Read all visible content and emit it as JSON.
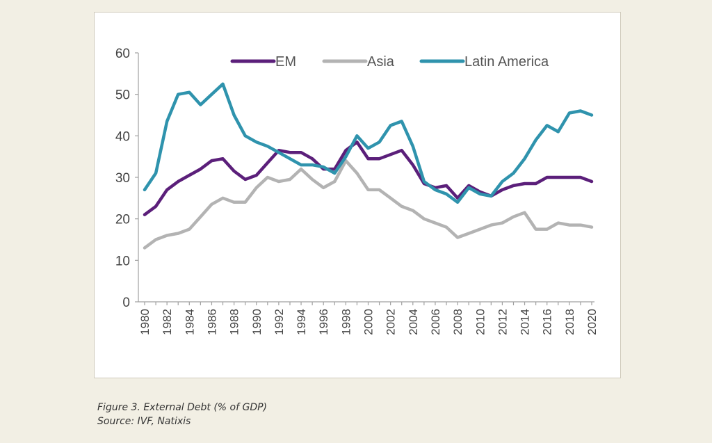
{
  "caption": {
    "figure": "Figure 3. External Debt (% of GDP)",
    "source": "Source: IVF, Natixis"
  },
  "chart_data": {
    "type": "line",
    "title": "",
    "xlabel": "",
    "ylabel": "",
    "ylim": [
      0,
      60
    ],
    "yticks": [
      0,
      10,
      20,
      30,
      40,
      50,
      60
    ],
    "xlim": [
      1980,
      2020
    ],
    "xtick_labels": [
      "1980",
      "1982",
      "1984",
      "1986",
      "1988",
      "1990",
      "1992",
      "1994",
      "1996",
      "1998",
      "2000",
      "2002",
      "2004",
      "2006",
      "2008",
      "2010",
      "2012",
      "2014",
      "2016",
      "2018",
      "2020"
    ],
    "grid": false,
    "legend": "top",
    "x": [
      1980,
      1981,
      1982,
      1983,
      1984,
      1985,
      1986,
      1987,
      1988,
      1989,
      1990,
      1991,
      1992,
      1993,
      1994,
      1995,
      1996,
      1997,
      1998,
      1999,
      2000,
      2001,
      2002,
      2003,
      2004,
      2005,
      2006,
      2007,
      2008,
      2009,
      2010,
      2011,
      2012,
      2013,
      2014,
      2015,
      2016,
      2017,
      2018,
      2019,
      2020
    ],
    "series": [
      {
        "name": "EM",
        "color": "#5b1f7a",
        "values": [
          21,
          23,
          27,
          29,
          30.5,
          32,
          34,
          34.5,
          31.5,
          29.5,
          30.5,
          33.5,
          36.5,
          36,
          36,
          34.5,
          32,
          32,
          36.5,
          38.5,
          34.5,
          34.5,
          35.5,
          36.5,
          33,
          28.5,
          27.5,
          28,
          25,
          28,
          26.5,
          25.5,
          27,
          28,
          28.5,
          28.5,
          30,
          30,
          30,
          30,
          29
        ]
      },
      {
        "name": "Asia",
        "color": "#b3b3b3",
        "values": [
          13,
          15,
          16,
          16.5,
          17.5,
          20.5,
          23.5,
          25,
          24,
          24,
          27.5,
          30,
          29,
          29.5,
          32,
          29.5,
          27.5,
          29,
          34,
          31,
          27,
          27,
          25,
          23,
          22,
          20,
          19,
          18,
          15.5,
          16.5,
          17.5,
          18.5,
          19,
          20.5,
          21.5,
          17.5,
          17.5,
          19,
          18.5,
          18.5,
          18
        ]
      },
      {
        "name": "Latin America",
        "color": "#2f93ad",
        "values": [
          27,
          31,
          43.5,
          50,
          50.5,
          47.5,
          50,
          52.5,
          45,
          40,
          38.5,
          37.5,
          36,
          34.5,
          33,
          33,
          32.5,
          31,
          35,
          40,
          37,
          38.5,
          42.5,
          43.5,
          37.5,
          29,
          27,
          26,
          24,
          27.5,
          26,
          25.5,
          29,
          31,
          34.5,
          39,
          42.5,
          41,
          45.5,
          46,
          45
        ]
      }
    ]
  }
}
